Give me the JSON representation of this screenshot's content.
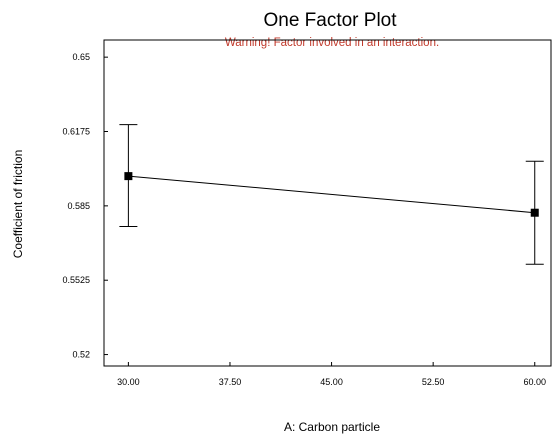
{
  "chart_data": {
    "type": "line",
    "title": "One Factor Plot",
    "annotation": "Warning! Factor involved in an interaction.",
    "xlabel": "A: Carbon particle",
    "ylabel": "Coefficient of friction",
    "x_ticks": [
      "30.00",
      "37.50",
      "45.00",
      "52.50",
      "60.00"
    ],
    "y_ticks": [
      "0.65",
      "0.6175",
      "0.585",
      "0.5525",
      "0.52"
    ],
    "xlim": [
      28.2,
      61.2
    ],
    "ylim": [
      0.515,
      0.6575
    ],
    "grid": false,
    "series": [
      {
        "x": [
          30,
          60
        ],
        "y": [
          0.598,
          0.582
        ],
        "lower": [
          0.576,
          0.5595
        ],
        "upper": [
          0.6205,
          0.6045
        ]
      }
    ],
    "colors": {
      "line": "#000000",
      "annotation": "#c0392b"
    }
  }
}
